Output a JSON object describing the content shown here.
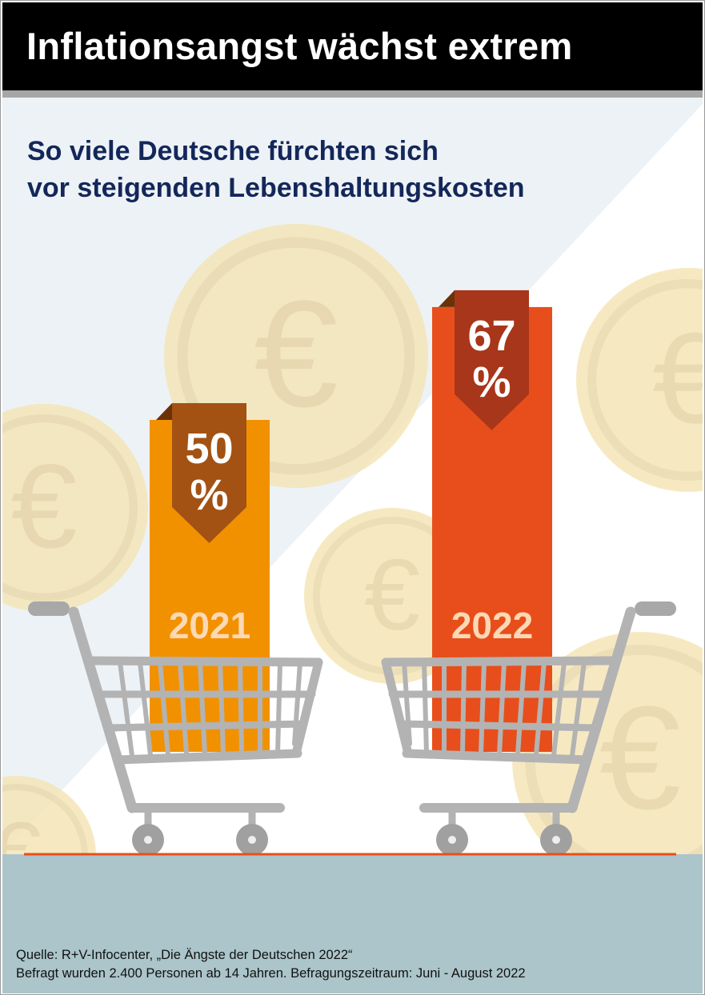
{
  "header": {
    "title": "Inflationsangst wächst extrem"
  },
  "subtitle": [
    "So viele Deutsche fürchten sich",
    "vor steigenden Lebenshaltungskosten"
  ],
  "chart_data": {
    "type": "bar",
    "title": "So viele Deutsche fürchten sich vor steigenden Lebenshaltungskosten",
    "categories": [
      "2021",
      "2022"
    ],
    "values": [
      50,
      67
    ],
    "value_labels": [
      "50 %",
      "67 %"
    ],
    "unit": "%",
    "ylim": [
      0,
      100
    ],
    "colors": [
      "#f29100",
      "#e84e1b"
    ],
    "label_colors": [
      "#a35214",
      "#a8361a"
    ]
  },
  "footer": {
    "source": "Quelle: R+V-Infocenter, „Die Ängste der Deutschen 2022“",
    "note": "Befragt wurden 2.400 Personen ab 14 Jahren. Befragungszeitraum: Juni - August 2022"
  }
}
